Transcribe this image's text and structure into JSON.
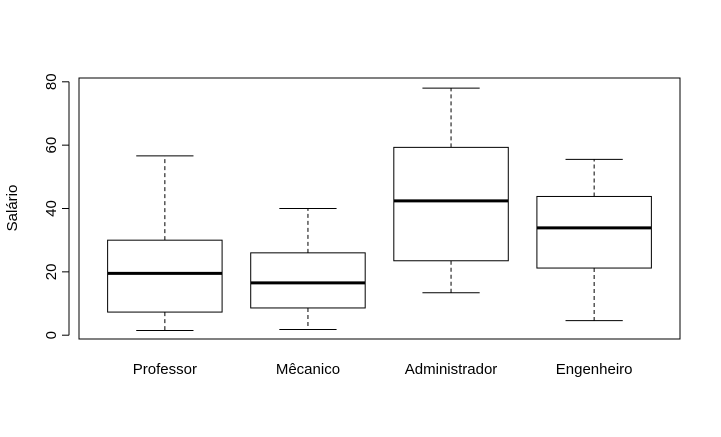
{
  "chart_data": {
    "type": "boxplot",
    "title": "",
    "xlabel": "",
    "ylabel": "Salário",
    "ylim": [
      -1.2,
      81.2
    ],
    "y_ticks": [
      0,
      20,
      40,
      60,
      80
    ],
    "grid": false,
    "legend": "none",
    "colors": {
      "box_fill": "#ffffff",
      "stroke": "#000000",
      "median": "#000000"
    },
    "categories": [
      "Professor",
      "Mêcanico",
      "Administrador",
      "Engenheiro"
    ],
    "boxes": [
      {
        "category": "Professor",
        "min": 1.5,
        "q1": 7.3,
        "median": 19.5,
        "q3": 30.0,
        "max": 56.6
      },
      {
        "category": "Mêcanico",
        "min": 1.8,
        "q1": 8.6,
        "median": 16.5,
        "q3": 26.0,
        "max": 40.0
      },
      {
        "category": "Administrador",
        "min": 13.4,
        "q1": 23.5,
        "median": 42.4,
        "q3": 59.3,
        "max": 78.0
      },
      {
        "category": "Engenheiro",
        "min": 4.6,
        "q1": 21.2,
        "median": 33.9,
        "q3": 43.8,
        "max": 55.5
      }
    ]
  }
}
